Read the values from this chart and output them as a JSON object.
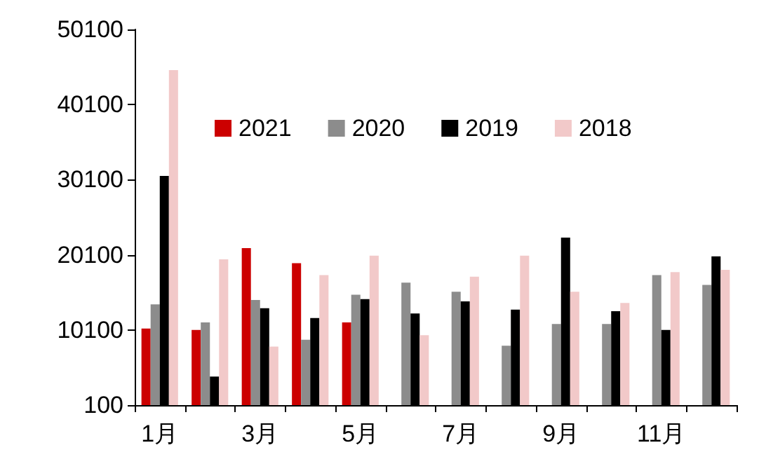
{
  "chart_data": {
    "type": "bar",
    "categories": [
      "1月",
      null,
      "3月",
      null,
      "5月",
      null,
      "7月",
      null,
      "9月",
      null,
      "11月",
      null
    ],
    "series": [
      {
        "name": "2021",
        "color": "#cc0000",
        "values": [
          10300,
          10100,
          21000,
          19000,
          11100,
          null,
          null,
          null,
          null,
          null,
          null,
          null
        ]
      },
      {
        "name": "2020",
        "color": "#8c8c8c",
        "values": [
          13500,
          11100,
          14100,
          8800,
          14800,
          16400,
          15200,
          8000,
          10900,
          10900,
          17400,
          16100
        ]
      },
      {
        "name": "2019",
        "color": "#000000",
        "values": [
          30600,
          3900,
          13000,
          11700,
          14200,
          12300,
          13900,
          12800,
          22400,
          12600,
          10100,
          19900
        ]
      },
      {
        "name": "2018",
        "color": "#f2c9c9",
        "values": [
          44700,
          19500,
          7900,
          17400,
          20000,
          9400,
          17200,
          20000,
          15200,
          13700,
          17800,
          18100
        ]
      }
    ],
    "ylim": [
      100,
      50100
    ],
    "yticks": [
      100,
      10100,
      20100,
      30100,
      40100,
      50100
    ],
    "grid": false,
    "legend": "top"
  }
}
